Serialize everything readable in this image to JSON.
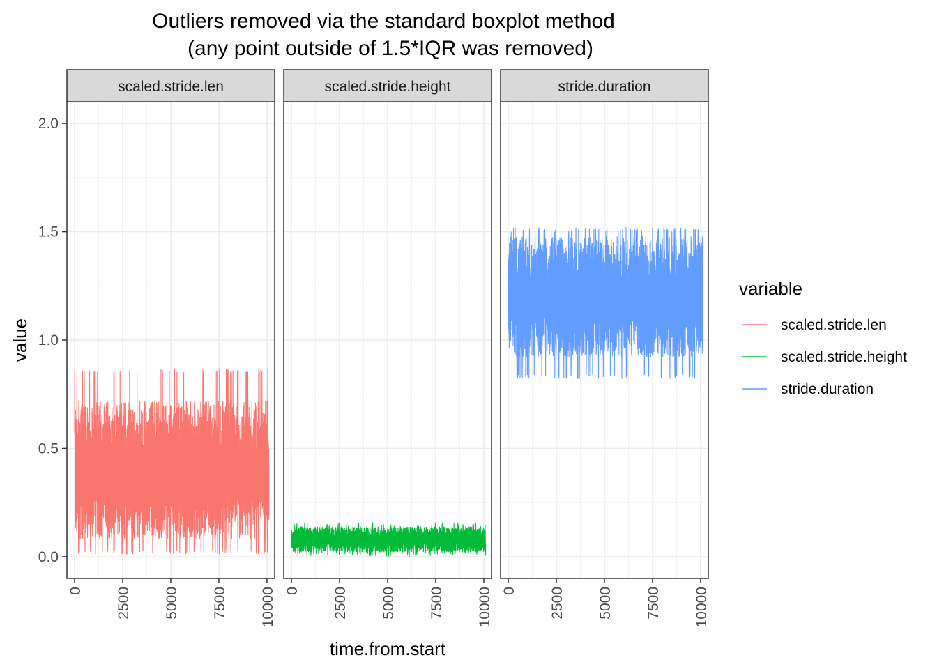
{
  "chart_data": {
    "type": "line",
    "title_line1": "Outliers removed via the standard boxplot method",
    "title_line2": "(any point outside of 1.5*IQR was removed)",
    "xlabel": "time.from.start",
    "ylabel": "value",
    "xlim": [
      -400,
      10400
    ],
    "ylim": [
      -0.1,
      2.1
    ],
    "x_ticks": [
      0,
      2500,
      5000,
      7500,
      10000
    ],
    "x_tick_labels": [
      "0",
      "2500",
      "5000",
      "7500",
      "10000"
    ],
    "y_ticks": [
      0.0,
      0.5,
      1.0,
      1.5,
      2.0
    ],
    "y_tick_labels": [
      "0.0",
      "0.5",
      "1.0",
      "1.5",
      "2.0"
    ],
    "grid": true,
    "legend": {
      "title": "variable",
      "position": "right"
    },
    "series": [
      {
        "name": "scaled.stride.len",
        "color": "#F8766D",
        "x_range": [
          0,
          10100
        ],
        "typical_range": [
          0.08,
          0.72
        ],
        "min": 0.01,
        "max": 0.87
      },
      {
        "name": "scaled.stride.height",
        "color": "#00BA38",
        "x_range": [
          0,
          10100
        ],
        "typical_range": [
          0.02,
          0.14
        ],
        "min": 0.0,
        "max": 0.16
      },
      {
        "name": "stride.duration",
        "color": "#619CFF",
        "x_range": [
          0,
          10100
        ],
        "typical_range": [
          0.92,
          1.48
        ],
        "min": 0.82,
        "max": 1.52
      }
    ]
  }
}
